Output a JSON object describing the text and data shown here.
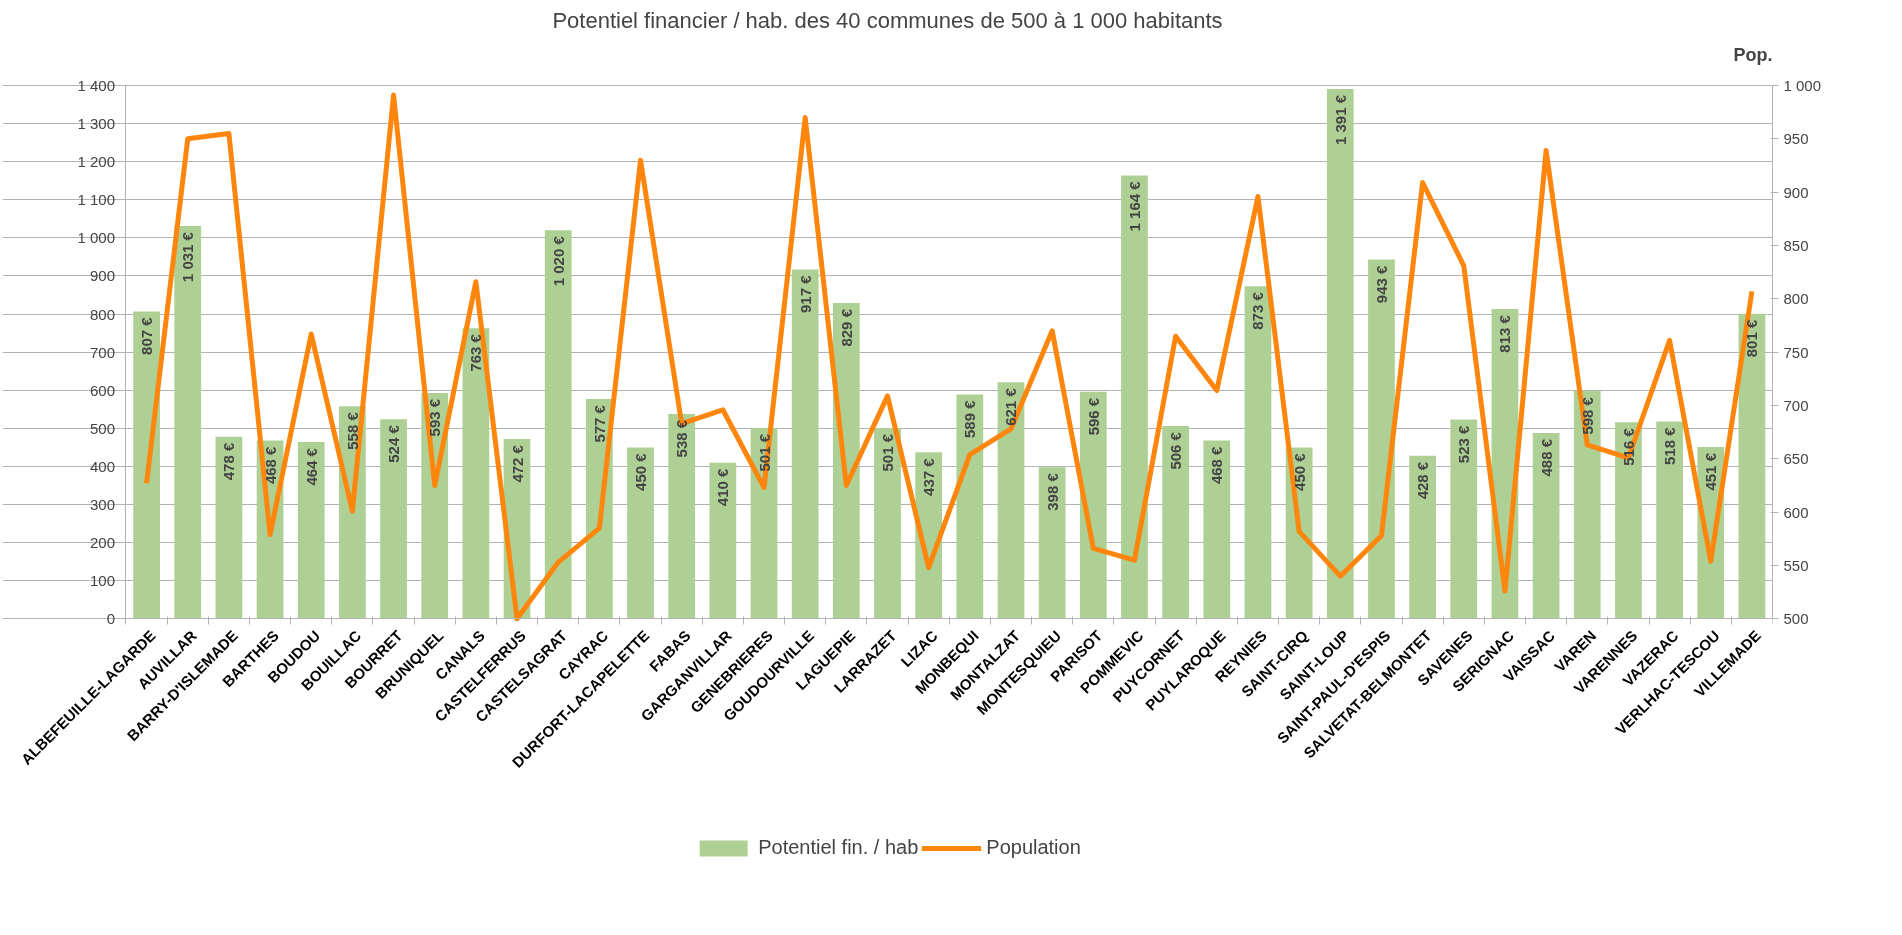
{
  "chart_data": {
    "type": "bar",
    "title": "Potentiel financier / hab. des 40 communes de 500 à 1 000 habitants",
    "y2label": "Pop.",
    "categories": [
      "ALBEFEUILLE-LAGARDE",
      "AUVILLAR",
      "BARRY-D'ISLEMADE",
      "BARTHES",
      "BOUDOU",
      "BOUILLAC",
      "BOURRET",
      "BRUNIQUEL",
      "CANALS",
      "CASTELFERRUS",
      "CASTELSAGRAT",
      "CAYRAC",
      "DURFORT-LACAPELETTE",
      "FABAS",
      "GARGANVILLAR",
      "GENEBRIERES",
      "GOUDOURVILLE",
      "LAGUEPIE",
      "LARRAZET",
      "LIZAC",
      "MONBEQUI",
      "MONTALZAT",
      "MONTESQUIEU",
      "PARISOT",
      "POMMEVIC",
      "PUYCORNET",
      "PUYLAROQUE",
      "REYNIES",
      "SAINT-CIRQ",
      "SAINT-LOUP",
      "SAINT-PAUL-D'ESPIS",
      "SALVETAT-BELMONTET",
      "SAVENES",
      "SERIGNAC",
      "VAISSAC",
      "VAREN",
      "VARENNES",
      "VAZERAC",
      "VERLHAC-TESCOU",
      "VILLEMADE"
    ],
    "series": [
      {
        "name": "Potentiel fin. / hab",
        "color": "#afd095",
        "values": [
          807,
          1031,
          478,
          468,
          464,
          558,
          524,
          593,
          763,
          472,
          1020,
          577,
          450,
          538,
          410,
          501,
          917,
          829,
          501,
          437,
          589,
          621,
          398,
          596,
          1164,
          506,
          468,
          873,
          450,
          1391,
          943,
          428,
          523,
          813,
          488,
          598,
          516,
          518,
          451,
          801
        ],
        "value_labels": [
          "807 €",
          "1 031 €",
          "478 €",
          "468 €",
          "464 €",
          "558 €",
          "524 €",
          "593 €",
          "763 €",
          "472 €",
          "1 020 €",
          "577 €",
          "450 €",
          "538 €",
          "410 €",
          "501 €",
          "917 €",
          "829 €",
          "501 €",
          "437 €",
          "589 €",
          "621 €",
          "398 €",
          "596 €",
          "1 164 €",
          "506 €",
          "468 €",
          "873 €",
          "450 €",
          "1 391 €",
          "943 €",
          "428 €",
          "523 €",
          "813 €",
          "488 €",
          "598 €",
          "516 €",
          "518 €",
          "451 €",
          "801 €"
        ]
      },
      {
        "name": "Population",
        "type": "line",
        "axis": "y2",
        "color": "#ff860d",
        "values": [
          627,
          950,
          955,
          579,
          767,
          601,
          991,
          625,
          816,
          500,
          553,
          585,
          930,
          683,
          696,
          623,
          970,
          625,
          709,
          548,
          654,
          678,
          770,
          566,
          555,
          765,
          714,
          896,
          582,
          540,
          578,
          909,
          831,
          526,
          939,
          663,
          651,
          761,
          554,
          807
        ]
      }
    ],
    "ylim": [
      0,
      1400
    ],
    "yticks": [
      0,
      100,
      200,
      300,
      400,
      500,
      600,
      700,
      800,
      900,
      {
        "value": 1000,
        "label": "1 000"
      },
      {
        "value": 1100,
        "label": "1 100"
      },
      {
        "value": 1200,
        "label": "1 200"
      },
      {
        "value": 1300,
        "label": "1 300"
      },
      {
        "value": 1400,
        "label": "1 400"
      }
    ],
    "y2lim": [
      500,
      1000
    ],
    "y2ticks": [
      500,
      550,
      600,
      650,
      700,
      750,
      800,
      850,
      900,
      950,
      {
        "value": 1000,
        "label": "1 000"
      }
    ],
    "grid": "y",
    "legend": "bottom",
    "marker": "none",
    "line_style": "solid"
  }
}
